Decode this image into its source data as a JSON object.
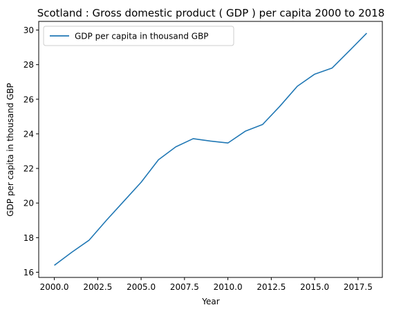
{
  "chart_data": {
    "type": "line",
    "title": "Scotland : Gross domestic product ( GDP ) per capita 2000 to 2018",
    "xlabel": "Year",
    "ylabel": "GDP per capita in thousand GBP",
    "xlim": [
      1999.1,
      2018.9
    ],
    "ylim": [
      15.7,
      30.5
    ],
    "x_ticks": [
      2000.0,
      2002.5,
      2005.0,
      2007.5,
      2010.0,
      2012.5,
      2015.0,
      2017.5
    ],
    "x_tick_labels": [
      "2000.0",
      "2002.5",
      "2005.0",
      "2007.5",
      "2010.0",
      "2012.5",
      "2015.0",
      "2017.5"
    ],
    "y_ticks": [
      16,
      18,
      20,
      22,
      24,
      26,
      28,
      30
    ],
    "y_tick_labels": [
      "16",
      "18",
      "20",
      "22",
      "24",
      "26",
      "28",
      "30"
    ],
    "grid": false,
    "legend": {
      "placement": "top-left"
    },
    "series": [
      {
        "name": "GDP per capita in thousand GBP",
        "color": "#1f77b4",
        "x": [
          2000,
          2001,
          2002,
          2003,
          2004,
          2005,
          2006,
          2007,
          2008,
          2009,
          2010,
          2011,
          2012,
          2013,
          2014,
          2015,
          2016,
          2017,
          2018
        ],
        "y": [
          16.4,
          17.15,
          17.85,
          19.0,
          20.1,
          21.2,
          22.5,
          23.25,
          23.72,
          23.58,
          23.47,
          24.15,
          24.54,
          25.6,
          26.75,
          27.45,
          27.8,
          28.8,
          29.82
        ]
      }
    ]
  }
}
